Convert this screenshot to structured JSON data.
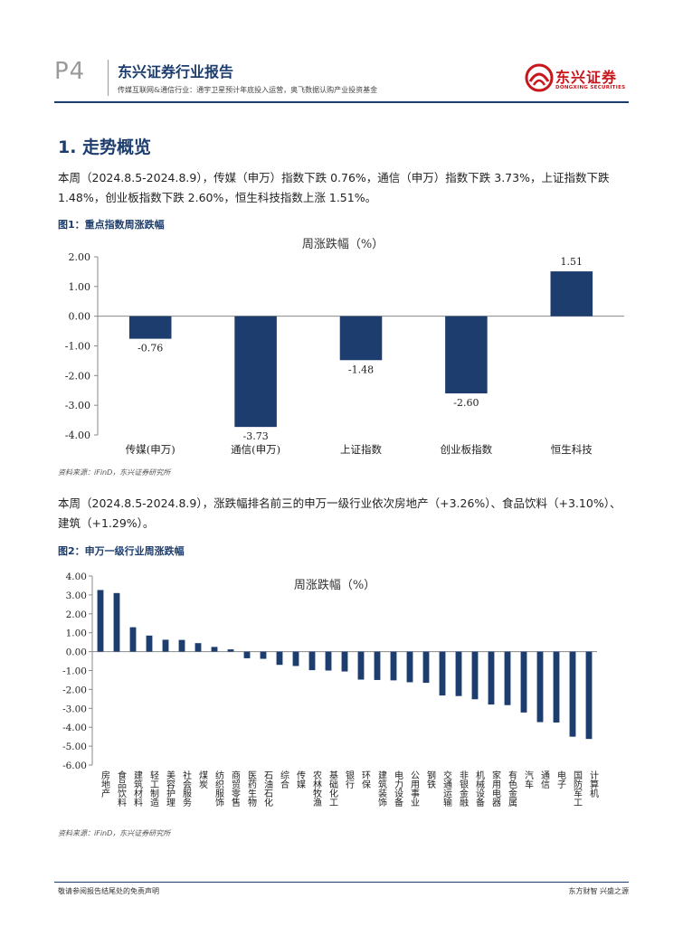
{
  "header": {
    "page_label": "P4",
    "report_title": "东兴证券行业报告",
    "report_subtitle": "传媒互联网&通信行业：通宇卫星预计年底投入运营，奥飞数据认购产业投资基金",
    "logo_cn": "东兴证券",
    "logo_en": "DONGXING SECURITIES",
    "accent_color": "#1c3d6e",
    "logo_color": "#c8161d"
  },
  "section": {
    "title": "1. 走势概览"
  },
  "paragraph1": "本周（2024.8.5-2024.8.9），传媒（申万）指数下跌 0.76%，通信（申万）指数下跌 3.73%，上证指数下跌 1.48%，创业板指数下跌 2.60%，恒生科技指数上涨 1.51%。",
  "figure1": {
    "label": "图1：重点指数周涨跌幅",
    "source": "资料来源：iFinD，东兴证券研究所"
  },
  "paragraph2": "本周（2024.8.5-2024.8.9），涨跌幅排名前三的申万一级行业依次房地产（+3.26%）、食品饮料（+3.10%）、建筑（+1.29%）。",
  "figure2": {
    "label": "图2：申万一级行业周涨跌幅",
    "source": "资料来源：iFinD，东兴证券研究所"
  },
  "footer": {
    "left": "敬请参阅报告结尾处的免责声明",
    "right": "东方财智  兴盛之源"
  },
  "chart_data": [
    {
      "type": "bar",
      "title": "周涨跌幅（%）",
      "categories": [
        "传媒(申万)",
        "通信(申万)",
        "上证指数",
        "创业板指数",
        "恒生科技"
      ],
      "values": [
        -0.76,
        -3.73,
        -1.48,
        -2.6,
        1.51
      ],
      "value_labels": [
        "-0.76",
        "-3.73",
        "-1.48",
        "-2.60",
        "1.51"
      ],
      "yticks": [
        "2.00",
        "1.00",
        "0.00",
        "-1.00",
        "-2.00",
        "-3.00",
        "-4.00"
      ],
      "ylim": [
        -4,
        2
      ],
      "bar_color": "#1c3d6e",
      "grid": false
    },
    {
      "type": "bar",
      "title": "周涨跌幅（%）",
      "categories": [
        "房地产",
        "食品饮料",
        "建筑材料",
        "轻工制造",
        "美容护理",
        "社会服务",
        "煤炭",
        "纺织服饰",
        "商贸零售",
        "医药生物",
        "石油石化",
        "综合",
        "传媒",
        "农林牧渔",
        "基础化工",
        "银行",
        "环保",
        "建筑装饰",
        "电力设备",
        "公用事业",
        "钢铁",
        "交通运输",
        "非银金融",
        "机械设备",
        "家用电器",
        "有色金属",
        "汽车",
        "通信",
        "电子",
        "国防军工",
        "计算机"
      ],
      "values": [
        3.26,
        3.1,
        1.29,
        0.85,
        0.63,
        0.62,
        0.45,
        0.25,
        0.12,
        -0.35,
        -0.38,
        -0.7,
        -0.76,
        -0.98,
        -1.0,
        -1.05,
        -1.48,
        -1.5,
        -1.52,
        -1.62,
        -1.65,
        -2.32,
        -2.35,
        -2.52,
        -2.8,
        -2.83,
        -3.22,
        -3.73,
        -3.75,
        -4.5,
        -4.62
      ],
      "yticks": [
        "4.00",
        "3.00",
        "2.00",
        "1.00",
        "0.00",
        "-1.00",
        "-2.00",
        "-3.00",
        "-4.00",
        "-5.00",
        "-6.00"
      ],
      "ylim": [
        -6,
        4
      ],
      "bar_color": "#1c3d6e",
      "grid": false
    }
  ]
}
